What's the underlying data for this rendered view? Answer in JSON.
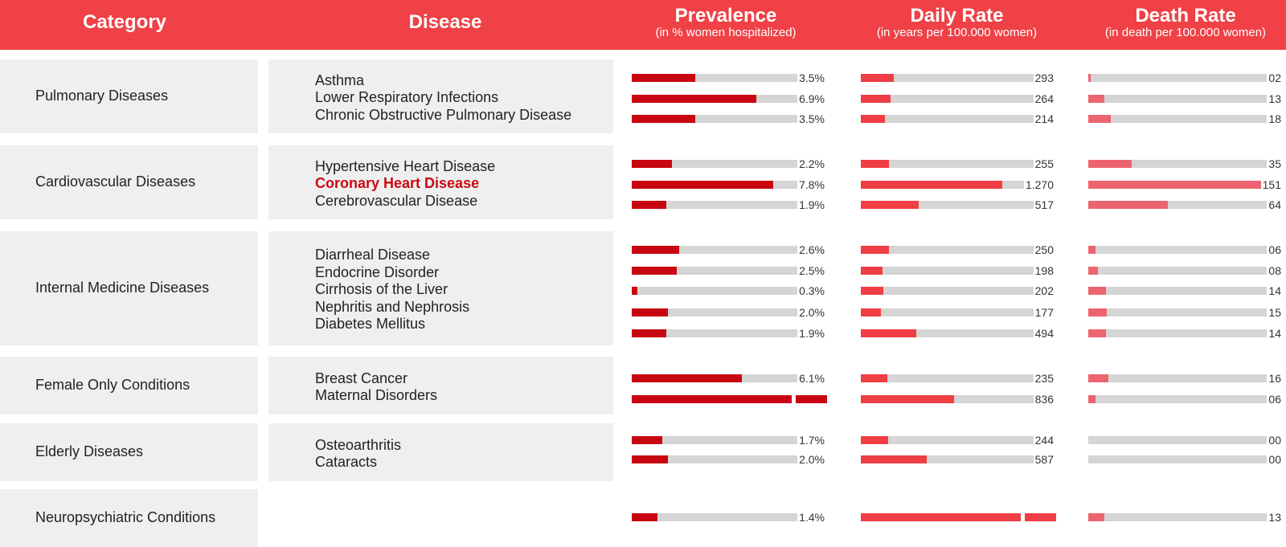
{
  "colors": {
    "header_bg": "#ef4146",
    "prevalence_bar": "#c70611",
    "daily_bar": "#ef3e44",
    "death_bar": "#ec6470",
    "track": "#d5d5d5",
    "highlight_text": "#c90a12"
  },
  "header": {
    "category": "Category",
    "disease": "Disease",
    "prevalence": {
      "title": "Prevalence",
      "subtitle": "(in % women hospitalized)"
    },
    "daily_rate": {
      "title": "Daily Rate",
      "subtitle": "(in years per 100.000 women)"
    },
    "death_rate": {
      "title": "Death Rate",
      "subtitle": "(in death per 100.000 women)"
    }
  },
  "chart_data": {
    "type": "bar",
    "groups": [
      {
        "category": "Pulmonary Diseases",
        "rows": [
          {
            "disease": "Asthma",
            "prevalence": 3.5,
            "prevalence_label": "3.5%",
            "daily": 293,
            "daily_label": "293",
            "death": 2,
            "death_label": "02"
          },
          {
            "disease": "Lower Respiratory Infections",
            "prevalence": 6.9,
            "prevalence_label": "6.9%",
            "daily": 264,
            "daily_label": "264",
            "death": 13,
            "death_label": "13"
          },
          {
            "disease": "Chronic Obstructive Pulmonary Disease",
            "prevalence": 3.5,
            "prevalence_label": "3.5%",
            "daily": 214,
            "daily_label": "214",
            "death": 18,
            "death_label": "18"
          }
        ]
      },
      {
        "category": "Cardiovascular Diseases",
        "rows": [
          {
            "disease": "Hypertensive Heart Disease",
            "prevalence": 2.2,
            "prevalence_label": "2.2%",
            "daily": 255,
            "daily_label": "255",
            "death": 35,
            "death_label": "35"
          },
          {
            "disease": "Coronary Heart Disease",
            "highlight": true,
            "prevalence": 7.8,
            "prevalence_label": "7.8%",
            "daily": 1270,
            "daily_label": "1.270",
            "death": 151,
            "death_label": "151"
          },
          {
            "disease": "Cerebrovascular Disease",
            "prevalence": 1.9,
            "prevalence_label": "1.9%",
            "daily": 517,
            "daily_label": "517",
            "death": 64,
            "death_label": "64"
          }
        ]
      },
      {
        "category": "Internal Medicine Diseases",
        "rows": [
          {
            "disease": "Diarrheal Disease",
            "prevalence": 2.6,
            "prevalence_label": "2.6%",
            "daily": 250,
            "daily_label": "250",
            "death": 6,
            "death_label": "06"
          },
          {
            "disease": "Endocrine Disorder",
            "prevalence": 2.5,
            "prevalence_label": "2.5%",
            "daily": 198,
            "daily_label": "198",
            "death": 8,
            "death_label": "08"
          },
          {
            "disease": "Cirrhosis of the Liver",
            "prevalence": 0.3,
            "prevalence_label": "0.3%",
            "daily": 202,
            "daily_label": "202",
            "death": 14,
            "death_label": "14"
          },
          {
            "disease": "Nephritis and Nephrosis",
            "prevalence": 2.0,
            "prevalence_label": "2.0%",
            "daily": 177,
            "daily_label": "177",
            "death": 15,
            "death_label": "15"
          },
          {
            "disease": "Diabetes Mellitus",
            "prevalence": 1.9,
            "prevalence_label": "1.9%",
            "daily": 494,
            "daily_label": "494",
            "death": 14,
            "death_label": "14"
          }
        ]
      },
      {
        "category": "Female Only Conditions",
        "rows": [
          {
            "disease": "Breast Cancer",
            "prevalence": 6.1,
            "prevalence_label": "6.1%",
            "daily": 235,
            "daily_label": "235",
            "death": 16,
            "death_label": "16"
          },
          {
            "disease": "Maternal Disorders",
            "prevalence": 10.8,
            "prevalence_label": "",
            "daily": 836,
            "daily_label": "836",
            "death": 6,
            "death_label": "06"
          }
        ]
      },
      {
        "category": "Elderly Diseases",
        "rows": [
          {
            "disease": "Osteoarthritis",
            "prevalence": 1.7,
            "prevalence_label": "1.7%",
            "daily": 244,
            "daily_label": "244",
            "death": 0,
            "death_label": "00"
          },
          {
            "disease": "Cataracts",
            "prevalence": 2.0,
            "prevalence_label": "2.0%",
            "daily": 587,
            "daily_label": "587",
            "death": 0,
            "death_label": "00"
          }
        ]
      },
      {
        "category": "Neuropsychiatric Conditions",
        "rows": [
          {
            "disease": "",
            "prevalence": 1.4,
            "prevalence_label": "1.4%",
            "daily": 1650,
            "daily_label": "",
            "death": 13,
            "death_label": "13"
          }
        ]
      }
    ],
    "scales": {
      "prevalence_max": 10.8,
      "daily_max": 1750,
      "death_max": 157
    }
  }
}
